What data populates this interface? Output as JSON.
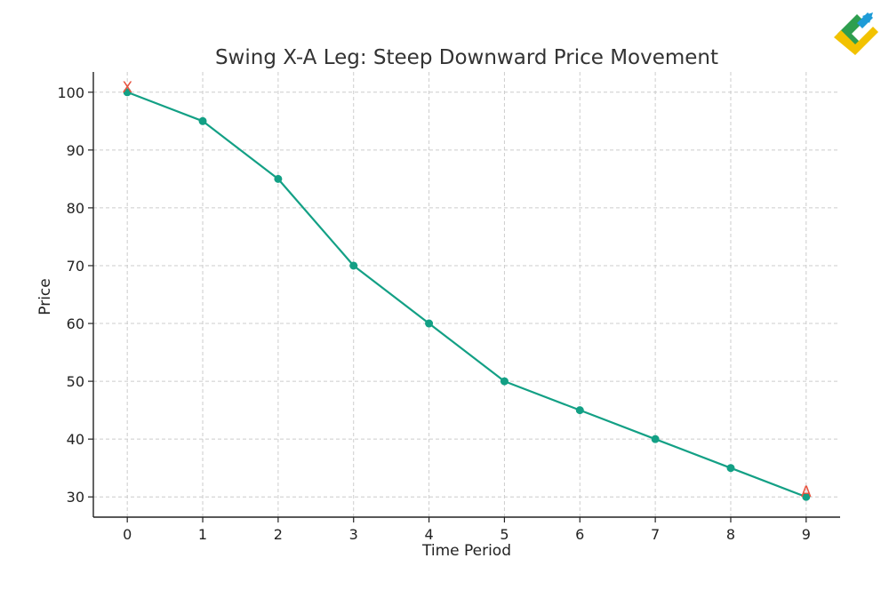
{
  "chart_data": {
    "type": "line",
    "title": "Swing X-A Leg: Steep Downward Price Movement",
    "xlabel": "Time Period",
    "ylabel": "Price",
    "x": [
      0,
      1,
      2,
      3,
      4,
      5,
      6,
      7,
      8,
      9
    ],
    "series": [
      {
        "values": [
          100,
          95,
          85,
          70,
          60,
          50,
          45,
          40,
          35,
          30
        ],
        "color": "#13a085"
      }
    ],
    "xticks": [
      0,
      1,
      2,
      3,
      4,
      5,
      6,
      7,
      8,
      9
    ],
    "yticks": [
      30,
      40,
      50,
      60,
      70,
      80,
      90,
      100
    ],
    "xlim": [
      -0.45,
      9.45
    ],
    "ylim": [
      26.5,
      103.5
    ],
    "grid": true,
    "annotations": [
      {
        "text": "X",
        "x": 0,
        "y": 100,
        "color": "#e8533f"
      },
      {
        "text": "A",
        "x": 9,
        "y": 30,
        "color": "#e8533f"
      }
    ]
  },
  "logo": {
    "name": "brand-logo-icon",
    "colors": [
      "#2e9e4f",
      "#1e9bd7",
      "#f2c200"
    ]
  }
}
